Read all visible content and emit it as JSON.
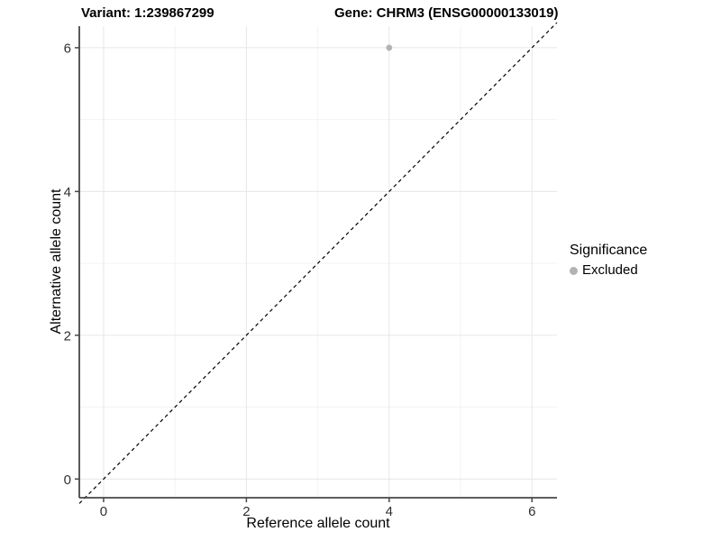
{
  "header": {
    "variant_title": "Variant: 1:239867299",
    "gene_title": "Gene: CHRM3 (ENSG00000133019)"
  },
  "legend": {
    "title": "Significance",
    "items": [
      {
        "label": "Excluded",
        "color": "#b3b3b3"
      }
    ]
  },
  "chart_data": {
    "type": "scatter",
    "title": "Variant: 1:239867299 — Gene: CHRM3 (ENSG00000133019)",
    "xlabel": "Reference allele count",
    "ylabel": "Alternative allele count",
    "xlim": [
      -0.34,
      6.35
    ],
    "ylim": [
      -0.26,
      6.3
    ],
    "x_ticks": [
      0,
      2,
      4,
      6
    ],
    "y_ticks": [
      0,
      2,
      4,
      6
    ],
    "x_minor_ticks": [
      1,
      3,
      5
    ],
    "y_minor_ticks": [
      1,
      3,
      5
    ],
    "grid": "major and minor gridlines on white panel",
    "legend_position": "right",
    "series": [
      {
        "name": "Excluded",
        "color": "#b3b3b3",
        "points": [
          {
            "x": 4,
            "y": 6
          }
        ]
      }
    ],
    "reference_line": {
      "type": "identity y=x",
      "style": "dashed",
      "color": "#000000"
    }
  },
  "colors": {
    "background": "#ffffff",
    "grid_major": "#e6e6e6",
    "grid_minor": "#f3f3f3",
    "axis_line": "#474747",
    "tick_label": "#303030",
    "point": "#b3b3b3"
  }
}
